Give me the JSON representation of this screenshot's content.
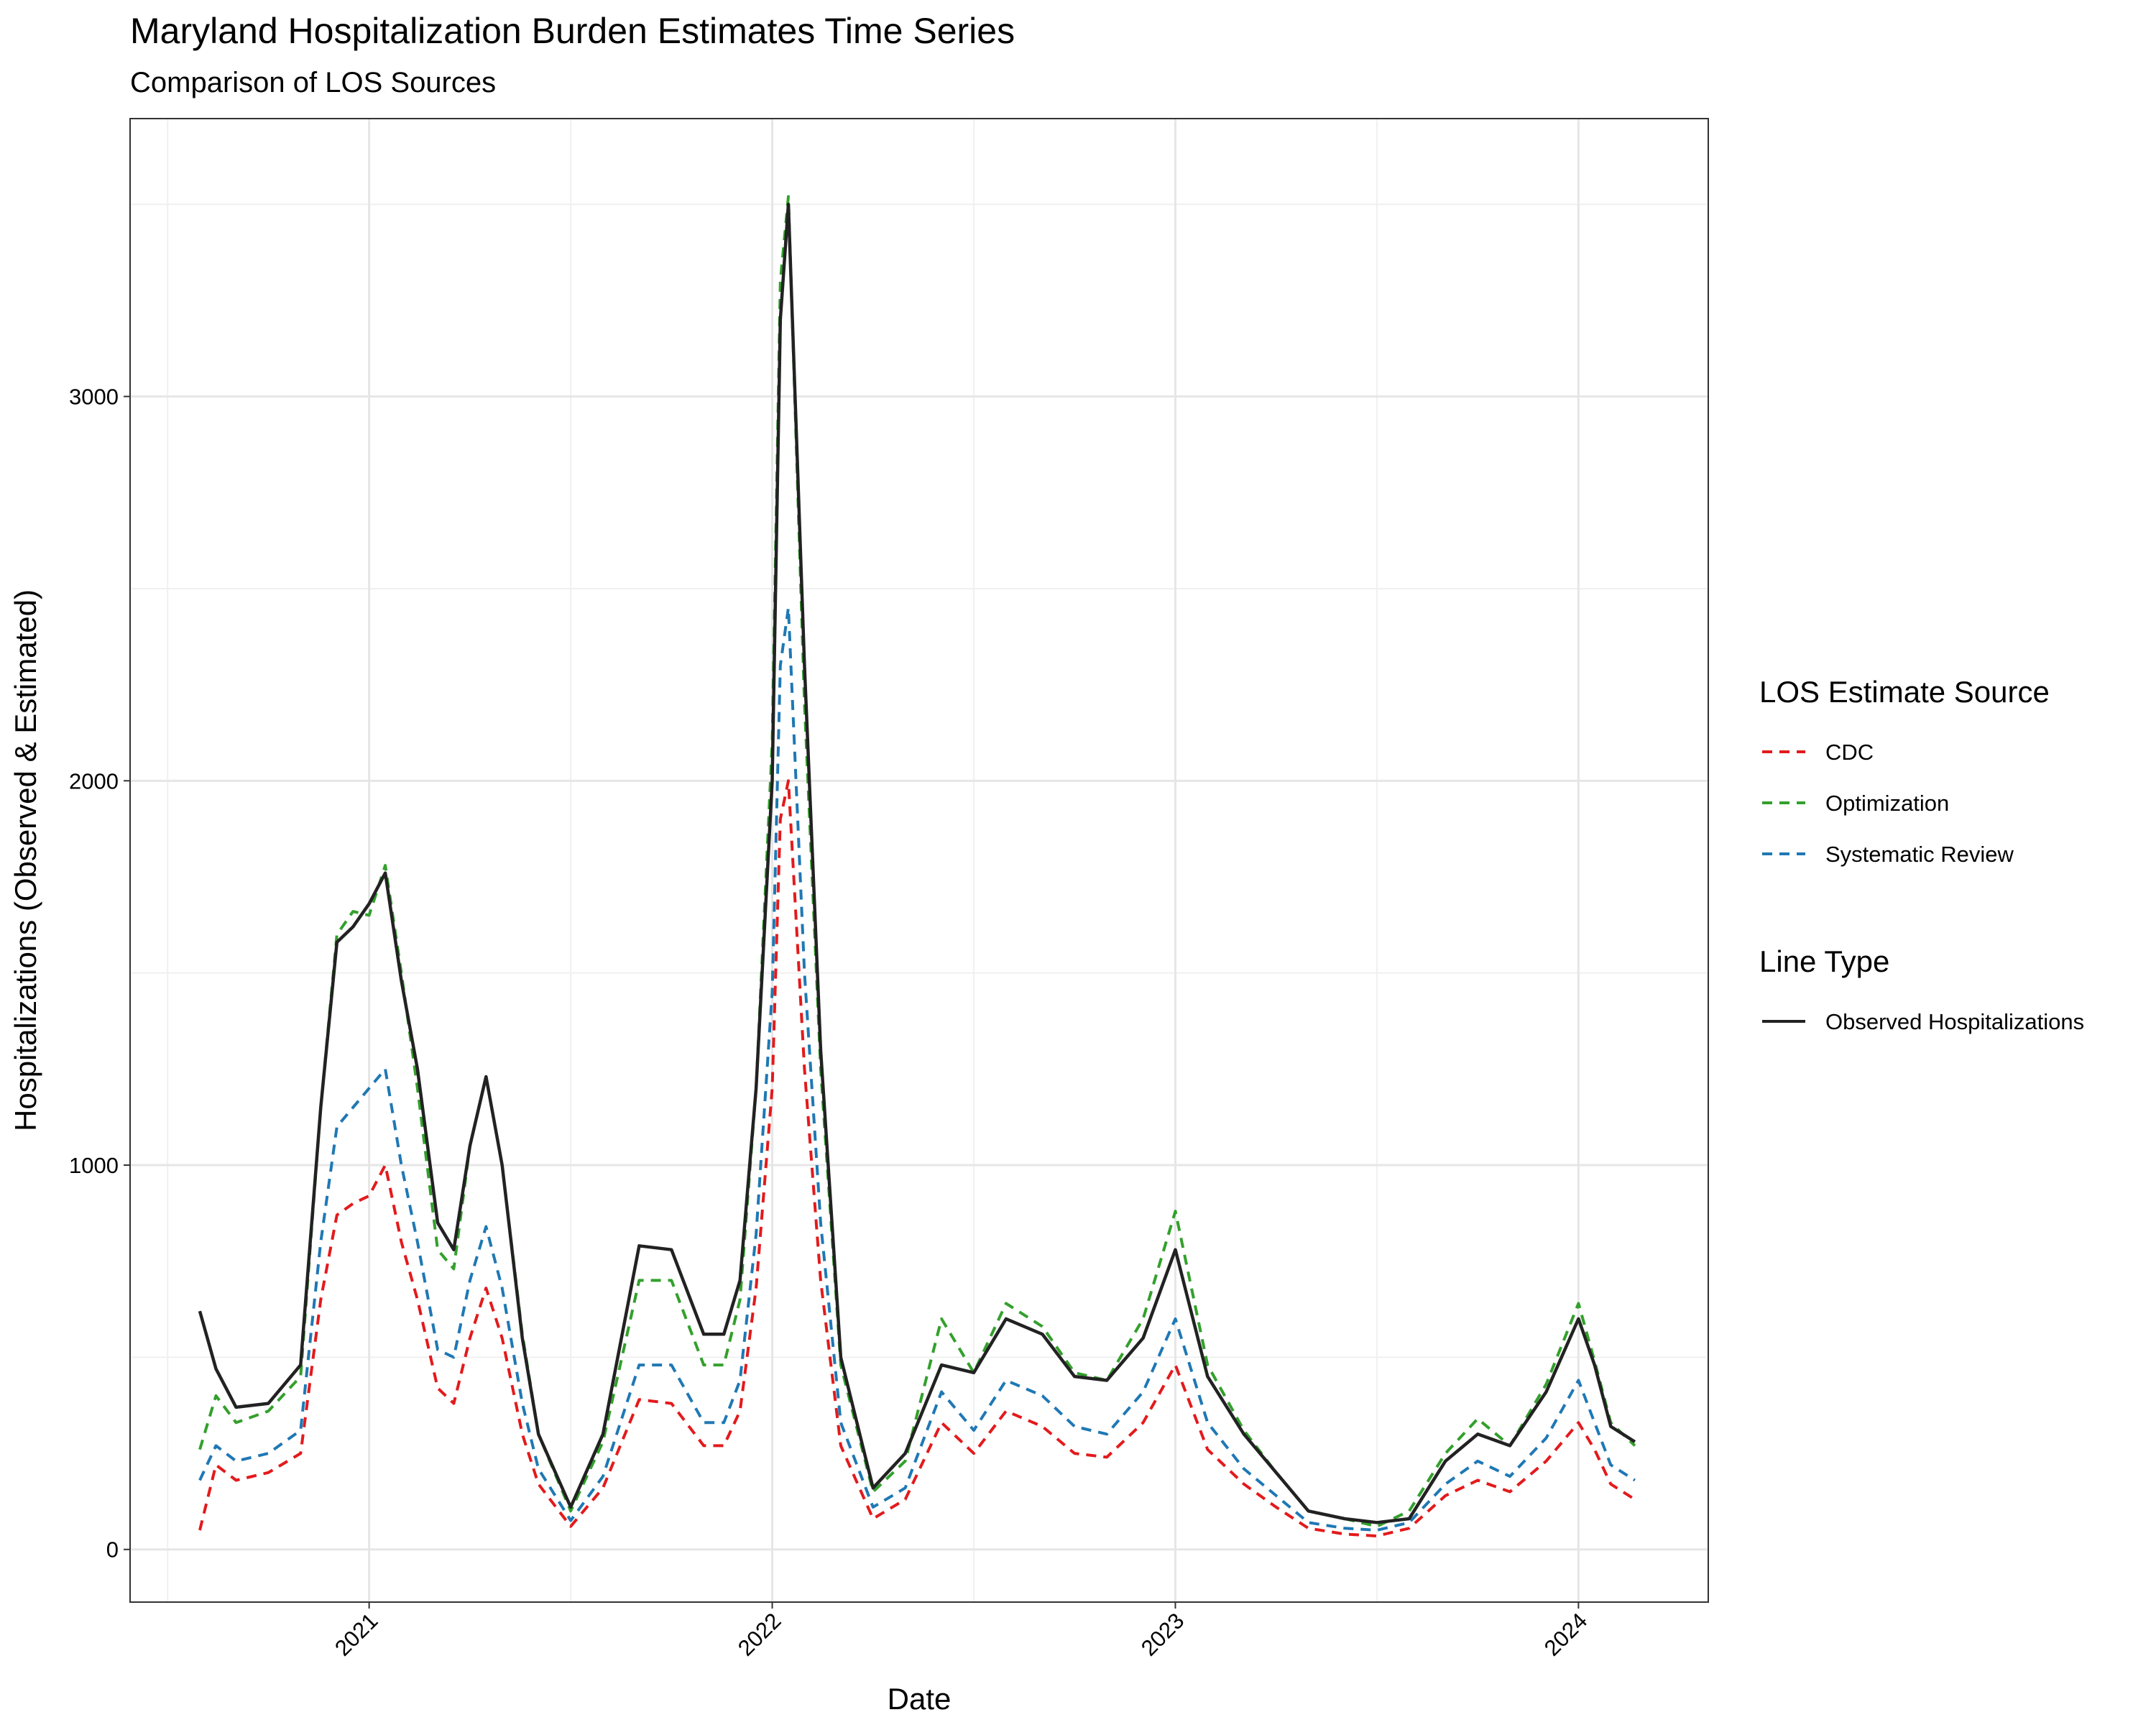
{
  "chart_data": {
    "type": "line",
    "title": "Maryland Hospitalization Burden Estimates Time Series",
    "subtitle": "Comparison of LOS Sources",
    "x_label": "Date",
    "y_label": "Hospitalizations (Observed & Estimated)",
    "x": [
      2020.58,
      2020.62,
      2020.67,
      2020.75,
      2020.83,
      2020.88,
      2020.92,
      2020.96,
      2021.0,
      2021.04,
      2021.08,
      2021.12,
      2021.17,
      2021.21,
      2021.25,
      2021.29,
      2021.33,
      2021.38,
      2021.42,
      2021.5,
      2021.58,
      2021.67,
      2021.75,
      2021.83,
      2021.88,
      2021.92,
      2021.96,
      2022.0,
      2022.02,
      2022.04,
      2022.08,
      2022.12,
      2022.17,
      2022.25,
      2022.33,
      2022.42,
      2022.5,
      2022.58,
      2022.67,
      2022.75,
      2022.83,
      2022.92,
      2023.0,
      2023.08,
      2023.17,
      2023.25,
      2023.33,
      2023.42,
      2023.5,
      2023.58,
      2023.67,
      2023.75,
      2023.83,
      2023.92,
      2024.0,
      2024.04,
      2024.08,
      2024.14
    ],
    "xlim": [
      2020.407,
      2024.322
    ],
    "xticks": [
      2021,
      2022,
      2023,
      2024
    ],
    "minor_xticks": [
      2020.5,
      2021.5,
      2022.5,
      2023.5
    ],
    "ylim": [
      -137,
      3723
    ],
    "yticks": [
      0,
      1000,
      2000,
      3000
    ],
    "minor_yticks": [
      500,
      1500,
      2500,
      3500
    ],
    "grid": true,
    "legend_position": "right",
    "series_groups": [
      {
        "title": "LOS Estimate Source",
        "series": [
          {
            "name": "CDC",
            "color": "#e31a1c",
            "dash": true,
            "values": [
              50,
              220,
              180,
              200,
              250,
              650,
              870,
              900,
              920,
              1000,
              800,
              650,
              420,
              380,
              550,
              680,
              550,
              300,
              170,
              60,
              160,
              390,
              380,
              270,
              270,
              360,
              680,
              1200,
              1900,
              2000,
              1250,
              700,
              270,
              80,
              130,
              330,
              250,
              360,
              320,
              250,
              240,
              330,
              480,
              260,
              170,
              110,
              55,
              40,
              35,
              55,
              140,
              180,
              150,
              230,
              330,
              260,
              170,
              130
            ]
          },
          {
            "name": "Optimization",
            "color": "#33a02c",
            "dash": true,
            "values": [
              260,
              400,
              330,
              360,
              450,
              1150,
              1600,
              1660,
              1650,
              1780,
              1500,
              1200,
              780,
              730,
              1050,
              1230,
              1000,
              560,
              300,
              100,
              280,
              700,
              700,
              480,
              480,
              650,
              1200,
              2100,
              3300,
              3520,
              2200,
              1250,
              480,
              150,
              230,
              600,
              460,
              640,
              580,
              460,
              440,
              600,
              880,
              480,
              310,
              200,
              100,
              80,
              60,
              100,
              250,
              340,
              270,
              430,
              640,
              490,
              330,
              270
            ]
          },
          {
            "name": "Systematic Review",
            "color": "#1f78b4",
            "dash": true,
            "values": [
              180,
              270,
              230,
              250,
              310,
              800,
              1100,
              1150,
              1200,
              1250,
              1000,
              800,
              520,
              500,
              700,
              840,
              680,
              380,
              210,
              75,
              190,
              480,
              480,
              330,
              330,
              440,
              820,
              1450,
              2300,
              2450,
              1500,
              850,
              330,
              110,
              160,
              410,
              310,
              440,
              400,
              320,
              300,
              410,
              600,
              330,
              210,
              140,
              70,
              55,
              50,
              70,
              170,
              230,
              190,
              290,
              440,
              330,
              220,
              180
            ]
          }
        ]
      },
      {
        "title": "Line Type",
        "series": [
          {
            "name": "Observed Hospitalizations",
            "color": "#222222",
            "dash": false,
            "values": [
              620,
              470,
              370,
              380,
              480,
              1150,
              1580,
              1620,
              1680,
              1760,
              1480,
              1250,
              850,
              780,
              1050,
              1230,
              1000,
              550,
              300,
              110,
              300,
              790,
              780,
              560,
              560,
              700,
              1200,
              2000,
              3200,
              3500,
              2300,
              1300,
              500,
              160,
              250,
              480,
              460,
              600,
              560,
              450,
              440,
              550,
              780,
              450,
              300,
              200,
              100,
              80,
              70,
              80,
              230,
              300,
              270,
              410,
              600,
              480,
              320,
              280
            ]
          }
        ]
      }
    ]
  }
}
